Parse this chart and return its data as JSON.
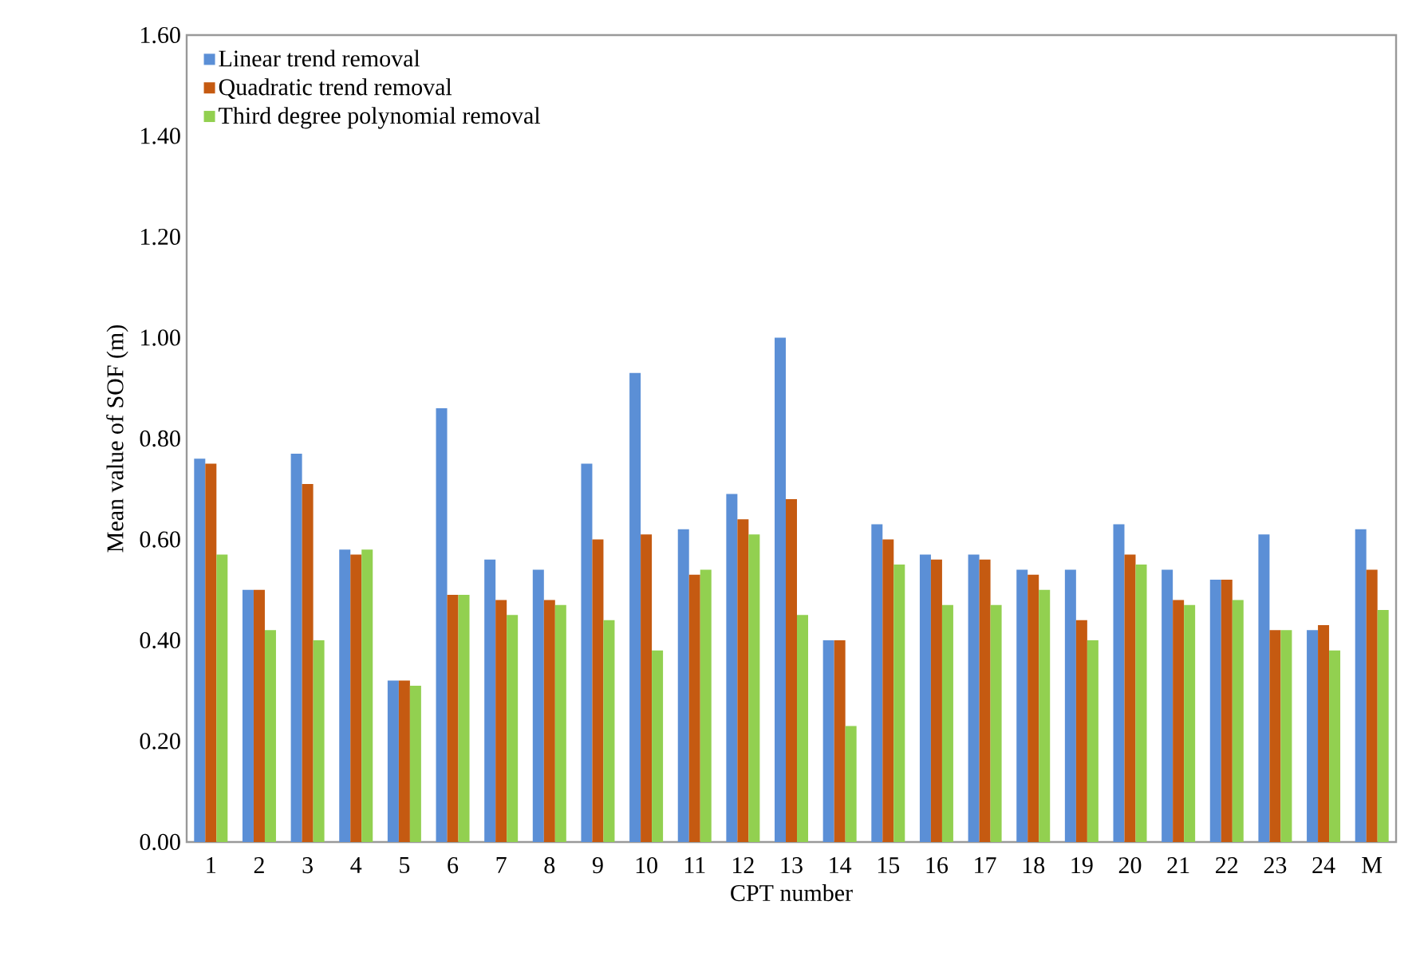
{
  "chart_data": {
    "type": "bar",
    "xlabel": "CPT number",
    "ylabel": "Mean  value of SOF  (m)",
    "categories": [
      "1",
      "2",
      "3",
      "4",
      "5",
      "6",
      "7",
      "8",
      "9",
      "10",
      "11",
      "12",
      "13",
      "14",
      "15",
      "16",
      "17",
      "18",
      "19",
      "20",
      "21",
      "22",
      "23",
      "24",
      "M"
    ],
    "series": [
      {
        "name": "Linear trend removal",
        "color": "#5b8fd6",
        "values": [
          0.76,
          0.5,
          0.77,
          0.58,
          0.32,
          0.86,
          0.56,
          0.54,
          0.75,
          0.93,
          0.62,
          0.69,
          1.0,
          0.4,
          0.63,
          0.57,
          0.57,
          0.54,
          0.54,
          0.63,
          0.54,
          0.52,
          0.61,
          0.42,
          0.62
        ]
      },
      {
        "name": "Quadratic trend removal",
        "color": "#c55a11",
        "values": [
          0.75,
          0.5,
          0.71,
          0.57,
          0.32,
          0.49,
          0.48,
          0.48,
          0.6,
          0.61,
          0.53,
          0.64,
          0.68,
          0.4,
          0.6,
          0.56,
          0.56,
          0.53,
          0.44,
          0.57,
          0.48,
          0.52,
          0.42,
          0.43,
          0.54
        ]
      },
      {
        "name": "Third degree polynomial removal",
        "color": "#92d050",
        "values": [
          0.57,
          0.42,
          0.4,
          0.58,
          0.31,
          0.49,
          0.45,
          0.47,
          0.44,
          0.38,
          0.54,
          0.61,
          0.45,
          0.23,
          0.55,
          0.47,
          0.47,
          0.5,
          0.4,
          0.55,
          0.47,
          0.48,
          0.42,
          0.38,
          0.46
        ]
      }
    ],
    "ylim": [
      0,
      1.6
    ],
    "yticks": [
      {
        "value": 0,
        "label": "0.00"
      },
      {
        "value": 0.2,
        "label": "0.20"
      },
      {
        "value": 0.4,
        "label": "0.40"
      },
      {
        "value": 0.6,
        "label": "0.60"
      },
      {
        "value": 0.8,
        "label": "0.80"
      },
      {
        "value": 1.0,
        "label": "1.00"
      },
      {
        "value": 1.2,
        "label": "1.20"
      },
      {
        "value": 1.4,
        "label": "1.40"
      },
      {
        "value": 1.6,
        "label": "1.60"
      }
    ],
    "grid": false,
    "legend": "top left"
  }
}
